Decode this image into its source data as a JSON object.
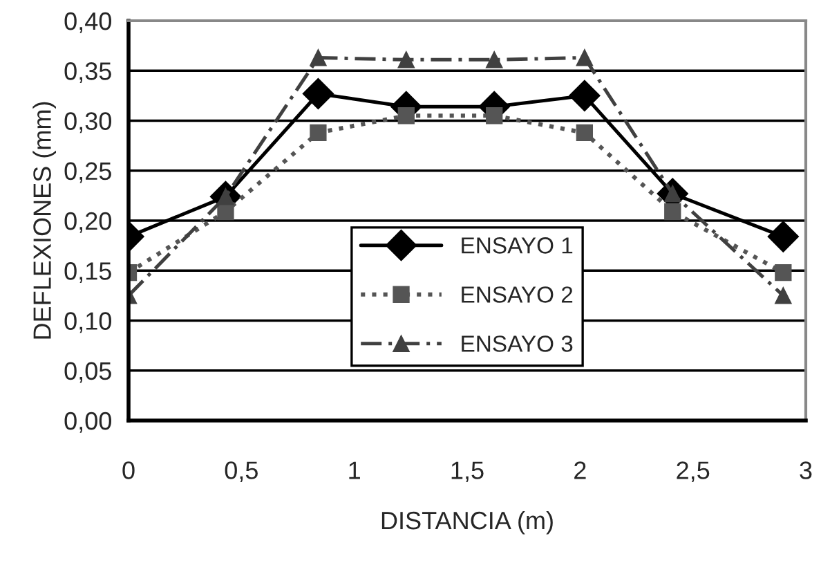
{
  "chart_data": {
    "type": "line",
    "xlabel": "DISTANCIA (m)",
    "ylabel": "DEFLEXIONES (mm)",
    "x": [
      0,
      0.43,
      0.84,
      1.23,
      1.62,
      2.02,
      2.41,
      2.9
    ],
    "series": [
      {
        "name": "ENSAYO 1",
        "color": "#000000",
        "marker": "diamond",
        "line_style": "solid",
        "values": [
          0.184,
          0.224,
          0.327,
          0.314,
          0.314,
          0.325,
          0.227,
          0.184
        ]
      },
      {
        "name": "ENSAYO 2",
        "color": "#555555",
        "marker": "square",
        "line_style": "dotted",
        "values": [
          0.148,
          0.209,
          0.288,
          0.305,
          0.305,
          0.288,
          0.209,
          0.148
        ]
      },
      {
        "name": "ENSAYO 3",
        "color": "#404040",
        "marker": "triangle",
        "line_style": "dashed",
        "values": [
          0.125,
          0.224,
          0.363,
          0.361,
          0.361,
          0.363,
          0.227,
          0.125
        ]
      }
    ],
    "xlim": [
      0,
      3
    ],
    "xticks": [
      0,
      {
        "value": 0.5,
        "label": "0,5"
      },
      1,
      {
        "value": 1.5,
        "label": "1,5"
      },
      2,
      {
        "value": 2.5,
        "label": "2,5"
      },
      3
    ],
    "ylim": [
      0,
      0.4
    ],
    "yticks": [
      {
        "value": 0,
        "label": "0,00"
      },
      {
        "value": 0.05,
        "label": "0,05"
      },
      {
        "value": 0.1,
        "label": "0,10"
      },
      {
        "value": 0.15,
        "label": "0,15"
      },
      {
        "value": 0.2,
        "label": "0,20"
      },
      {
        "value": 0.25,
        "label": "0,25"
      },
      {
        "value": 0.3,
        "label": "0,30"
      },
      {
        "value": 0.35,
        "label": "0,35"
      },
      {
        "value": 0.4,
        "label": "0,40"
      }
    ],
    "grid": "y",
    "legend": "center"
  }
}
